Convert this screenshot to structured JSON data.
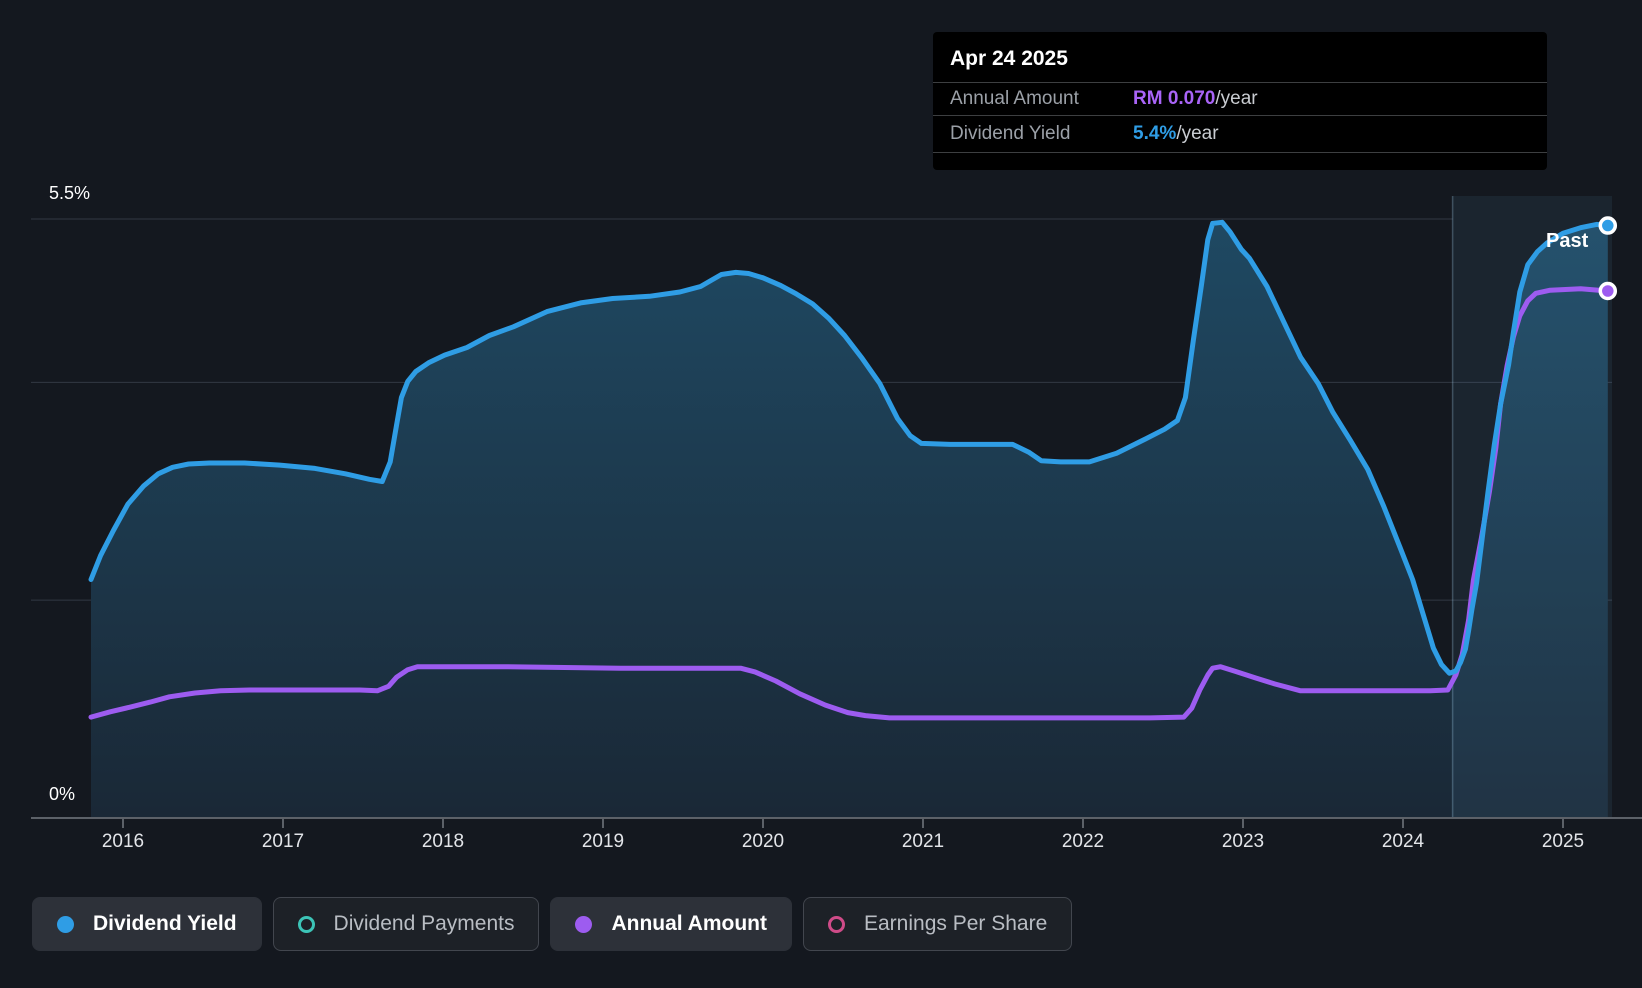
{
  "tooltip": {
    "date": "Apr 24 2025",
    "rows": [
      {
        "label": "Annual Amount",
        "value": "RM 0.070",
        "suffix": "/year",
        "color": "#a964f7"
      },
      {
        "label": "Dividend Yield",
        "value": "5.4%",
        "suffix": "/year",
        "color": "#2f9de5"
      }
    ]
  },
  "past_label": "Past",
  "axes": {
    "y_top_label": "5.5%",
    "y_bottom_label": "0%",
    "x_ticks": [
      2016,
      2017,
      2018,
      2019,
      2020,
      2021,
      2022,
      2023,
      2024,
      2025
    ]
  },
  "legend": {
    "items": [
      {
        "label": "Dividend Yield",
        "icon": "dot",
        "color": "#2f9de5",
        "active": true
      },
      {
        "label": "Dividend Payments",
        "icon": "ring",
        "color": "#3cc4b7",
        "active": false
      },
      {
        "label": "Annual Amount",
        "icon": "dot",
        "color": "#9d5cf0",
        "active": true
      },
      {
        "label": "Earnings Per Share",
        "icon": "ring",
        "color": "#cf4b88",
        "active": false
      }
    ]
  },
  "colors": {
    "background": "#14181f",
    "gridline": "#323843",
    "axis": "#5c6168",
    "dividend_yield_line": "#2f9de5",
    "annual_amount_line": "#9d5cf0",
    "area_fill_top": "#1f4a64",
    "area_fill_bottom": "#1a2836",
    "past_overlay": "rgba(126,200,255,0.075)",
    "past_divider": "rgba(170,215,245,0.28)",
    "tooltip_bg": "#000000",
    "marker_stroke": "#ffffff"
  },
  "chart_data": {
    "type": "area",
    "title": "Dividend history",
    "tooltip_date": "Apr 24 2025",
    "legend_position": "bottom",
    "grid": "horizontal",
    "x_range": [
      2015.8,
      2025.31
    ],
    "x_ticks": [
      2016,
      2017,
      2018,
      2019,
      2020,
      2021,
      2022,
      2023,
      2024,
      2025
    ],
    "y_axis_pct": {
      "min": 0,
      "max": 5.5,
      "top_tick_label": "5.5%",
      "bottom_tick_label": "0%"
    },
    "gridlines_pct": [
      5.5,
      4.0,
      2.0
    ],
    "past_region": {
      "start_year": 2024.31,
      "end_year": 2025.31,
      "label": "Past"
    },
    "series": [
      {
        "name": "Dividend Yield",
        "unit": "%",
        "style": "line-with-area",
        "color": "#2f9de5",
        "end_value_pct": 5.4,
        "points": [
          [
            2015.8,
            2.19
          ],
          [
            2015.86,
            2.41
          ],
          [
            2015.94,
            2.64
          ],
          [
            2016.03,
            2.88
          ],
          [
            2016.13,
            3.05
          ],
          [
            2016.22,
            3.16
          ],
          [
            2016.31,
            3.22
          ],
          [
            2016.41,
            3.25
          ],
          [
            2016.54,
            3.26
          ],
          [
            2016.76,
            3.26
          ],
          [
            2016.98,
            3.24
          ],
          [
            2017.2,
            3.21
          ],
          [
            2017.39,
            3.16
          ],
          [
            2017.54,
            3.11
          ],
          [
            2017.62,
            3.09
          ],
          [
            2017.67,
            3.27
          ],
          [
            2017.71,
            3.61
          ],
          [
            2017.74,
            3.86
          ],
          [
            2017.78,
            4.01
          ],
          [
            2017.83,
            4.1
          ],
          [
            2017.91,
            4.18
          ],
          [
            2018.01,
            4.25
          ],
          [
            2018.15,
            4.32
          ],
          [
            2018.29,
            4.43
          ],
          [
            2018.44,
            4.51
          ],
          [
            2018.65,
            4.65
          ],
          [
            2018.86,
            4.73
          ],
          [
            2019.06,
            4.77
          ],
          [
            2019.29,
            4.79
          ],
          [
            2019.48,
            4.83
          ],
          [
            2019.61,
            4.88
          ],
          [
            2019.68,
            4.94
          ],
          [
            2019.74,
            4.99
          ],
          [
            2019.83,
            5.01
          ],
          [
            2019.91,
            5.0
          ],
          [
            2020.0,
            4.96
          ],
          [
            2020.11,
            4.89
          ],
          [
            2020.21,
            4.81
          ],
          [
            2020.31,
            4.72
          ],
          [
            2020.41,
            4.59
          ],
          [
            2020.51,
            4.43
          ],
          [
            2020.62,
            4.22
          ],
          [
            2020.73,
            3.99
          ],
          [
            2020.84,
            3.67
          ],
          [
            2020.92,
            3.51
          ],
          [
            2020.99,
            3.44
          ],
          [
            2021.17,
            3.43
          ],
          [
            2021.56,
            3.43
          ],
          [
            2021.66,
            3.36
          ],
          [
            2021.74,
            3.28
          ],
          [
            2021.86,
            3.27
          ],
          [
            2022.04,
            3.27
          ],
          [
            2022.21,
            3.35
          ],
          [
            2022.39,
            3.48
          ],
          [
            2022.51,
            3.57
          ],
          [
            2022.59,
            3.65
          ],
          [
            2022.64,
            3.86
          ],
          [
            2022.69,
            4.39
          ],
          [
            2022.74,
            4.89
          ],
          [
            2022.78,
            5.31
          ],
          [
            2022.81,
            5.46
          ],
          [
            2022.87,
            5.47
          ],
          [
            2022.92,
            5.38
          ],
          [
            2022.99,
            5.22
          ],
          [
            2023.04,
            5.14
          ],
          [
            2023.15,
            4.88
          ],
          [
            2023.25,
            4.57
          ],
          [
            2023.36,
            4.23
          ],
          [
            2023.47,
            3.99
          ],
          [
            2023.56,
            3.73
          ],
          [
            2023.67,
            3.47
          ],
          [
            2023.78,
            3.2
          ],
          [
            2023.88,
            2.86
          ],
          [
            2023.98,
            2.49
          ],
          [
            2024.06,
            2.19
          ],
          [
            2024.13,
            1.85
          ],
          [
            2024.19,
            1.56
          ],
          [
            2024.24,
            1.41
          ],
          [
            2024.29,
            1.33
          ],
          [
            2024.33,
            1.35
          ],
          [
            2024.36,
            1.43
          ],
          [
            2024.39,
            1.55
          ],
          [
            2024.41,
            1.72
          ],
          [
            2024.43,
            1.91
          ],
          [
            2024.46,
            2.16
          ],
          [
            2024.49,
            2.51
          ],
          [
            2024.53,
            2.98
          ],
          [
            2024.57,
            3.42
          ],
          [
            2024.61,
            3.8
          ],
          [
            2024.66,
            4.16
          ],
          [
            2024.69,
            4.46
          ],
          [
            2024.73,
            4.83
          ],
          [
            2024.78,
            5.08
          ],
          [
            2024.84,
            5.2
          ],
          [
            2024.9,
            5.28
          ],
          [
            2025.0,
            5.37
          ],
          [
            2025.11,
            5.42
          ],
          [
            2025.21,
            5.45
          ],
          [
            2025.28,
            5.44
          ]
        ]
      },
      {
        "name": "Annual Amount",
        "unit": "RM",
        "style": "line",
        "color": "#9d5cf0",
        "end_value_rm": 0.07,
        "points": [
          [
            2015.8,
            0.0134
          ],
          [
            2015.92,
            0.0141
          ],
          [
            2016.04,
            0.0147
          ],
          [
            2016.17,
            0.0154
          ],
          [
            2016.29,
            0.0161
          ],
          [
            2016.45,
            0.0166
          ],
          [
            2016.61,
            0.0169
          ],
          [
            2016.79,
            0.017
          ],
          [
            2017.29,
            0.017
          ],
          [
            2017.48,
            0.017
          ],
          [
            2017.59,
            0.0169
          ],
          [
            2017.66,
            0.0175
          ],
          [
            2017.71,
            0.0187
          ],
          [
            2017.78,
            0.0197
          ],
          [
            2017.84,
            0.0201
          ],
          [
            2018.36,
            0.0201
          ],
          [
            2019.11,
            0.0199
          ],
          [
            2019.73,
            0.0199
          ],
          [
            2019.86,
            0.0199
          ],
          [
            2019.95,
            0.0194
          ],
          [
            2020.08,
            0.0182
          ],
          [
            2020.23,
            0.0165
          ],
          [
            2020.39,
            0.015
          ],
          [
            2020.53,
            0.014
          ],
          [
            2020.64,
            0.0136
          ],
          [
            2020.79,
            0.0133
          ],
          [
            2021.48,
            0.0133
          ],
          [
            2022.04,
            0.0133
          ],
          [
            2022.42,
            0.0133
          ],
          [
            2022.63,
            0.0134
          ],
          [
            2022.68,
            0.0146
          ],
          [
            2022.73,
            0.017
          ],
          [
            2022.78,
            0.019
          ],
          [
            2022.81,
            0.0199
          ],
          [
            2022.86,
            0.0201
          ],
          [
            2022.95,
            0.0195
          ],
          [
            2023.08,
            0.0186
          ],
          [
            2023.2,
            0.0178
          ],
          [
            2023.36,
            0.0169
          ],
          [
            2023.86,
            0.0169
          ],
          [
            2024.17,
            0.0169
          ],
          [
            2024.28,
            0.017
          ],
          [
            2024.33,
            0.019
          ],
          [
            2024.37,
            0.0217
          ],
          [
            2024.41,
            0.0263
          ],
          [
            2024.44,
            0.0316
          ],
          [
            2024.49,
            0.0372
          ],
          [
            2024.54,
            0.0433
          ],
          [
            2024.58,
            0.0491
          ],
          [
            2024.61,
            0.055
          ],
          [
            2024.65,
            0.06
          ],
          [
            2024.69,
            0.0639
          ],
          [
            2024.73,
            0.0667
          ],
          [
            2024.78,
            0.0687
          ],
          [
            2024.83,
            0.0697
          ],
          [
            2024.92,
            0.0701
          ],
          [
            2025.11,
            0.0703
          ],
          [
            2025.28,
            0.07
          ]
        ]
      },
      {
        "name": "Dividend Payments",
        "style": "hidden",
        "color": "#3cc4b7",
        "points": []
      },
      {
        "name": "Earnings Per Share",
        "style": "hidden",
        "color": "#cf4b88",
        "points": []
      }
    ]
  }
}
